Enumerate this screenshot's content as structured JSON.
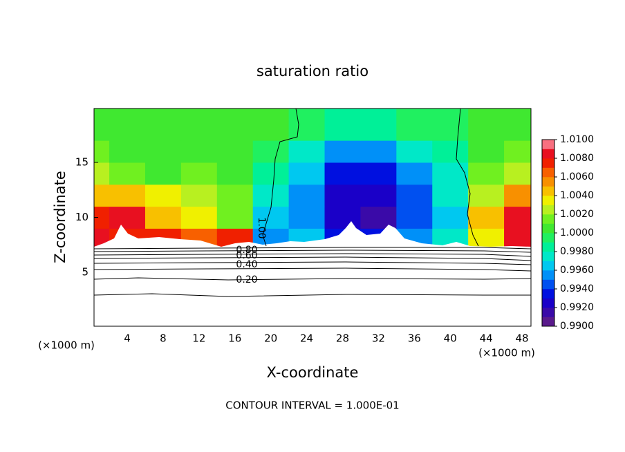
{
  "chart_data": {
    "type": "contour",
    "title": "saturation ratio",
    "x_label": "X-coordinate",
    "y_label": "Z-coordinate",
    "y_unit_label": "(×1000 m)",
    "x_unit_label": "(×1000 m)",
    "footer": "CONTOUR INTERVAL = 1.000E-01",
    "xlim": [
      0.3,
      49
    ],
    "ylim": [
      0.1,
      19.9
    ],
    "xticks": [
      4,
      8,
      12,
      16,
      20,
      24,
      28,
      32,
      36,
      40,
      44,
      48
    ],
    "yticks": [
      5,
      10,
      15
    ],
    "x": [
      0,
      4,
      8,
      12,
      16,
      20,
      24,
      28,
      32,
      36,
      40,
      44,
      48
    ],
    "y": [
      8,
      10,
      12,
      14,
      16,
      18
    ],
    "z": [
      [
        1.008,
        1.0075,
        1.007,
        1.006,
        1.007,
        0.9955,
        0.996,
        0.9935,
        0.993,
        0.995,
        0.997,
        1.003,
        1.008
      ],
      [
        1.007,
        1.008,
        1.004,
        1.003,
        1.0015,
        0.996,
        0.995,
        0.992,
        0.9915,
        0.994,
        0.996,
        1.004,
        1.008
      ],
      [
        1.004,
        1.004,
        1.003,
        1.002,
        1.001,
        0.9975,
        0.995,
        0.992,
        0.992,
        0.994,
        0.997,
        1.002,
        1.005
      ],
      [
        1.002,
        1.0015,
        1.0005,
        1.001,
        1.0005,
        0.998,
        0.996,
        0.993,
        0.993,
        0.995,
        0.9975,
        1.001,
        1.002
      ],
      [
        1.001,
        1.0005,
        1.0005,
        1.0005,
        1.0005,
        0.9995,
        0.9975,
        0.9955,
        0.9955,
        0.997,
        0.9985,
        1.0005,
        1.001
      ],
      [
        1.0005,
        1.0005,
        1.0005,
        1.0005,
        1.0005,
        1,
        0.999,
        0.9985,
        0.9985,
        0.999,
        0.9995,
        1.0005,
        1.0005
      ]
    ],
    "zlim": [
      0.99,
      1.01
    ],
    "level_step": 0.001,
    "colors": [
      "#5a1a8c",
      "#3a0aa8",
      "#1a00c8",
      "#0010e0",
      "#0050f0",
      "#0090f8",
      "#00c8f0",
      "#00e8c8",
      "#00f098",
      "#20f060",
      "#40e830",
      "#70f020",
      "#b8f020",
      "#f0f000",
      "#f8c000",
      "#f89000",
      "#f86000",
      "#f02000",
      "#e81020",
      "#f87080"
    ],
    "zticks": [
      {
        "value": 0.99,
        "label": "0.9900"
      },
      {
        "value": 0.992,
        "label": "0.9920"
      },
      {
        "value": 0.994,
        "label": "0.9940"
      },
      {
        "value": 0.996,
        "label": "0.9960"
      },
      {
        "value": 0.998,
        "label": "0.9980"
      },
      {
        "value": 1,
        "label": "1.0000"
      },
      {
        "value": 1.002,
        "label": "1.0020"
      },
      {
        "value": 1.004,
        "label": "1.0040"
      },
      {
        "value": 1.006,
        "label": "1.0060"
      },
      {
        "value": 1.008,
        "label": "1.0080"
      },
      {
        "value": 1.01,
        "label": "1.0100"
      }
    ],
    "contour_labels": [
      "1.00",
      "0.80",
      "0.60",
      "0.40",
      "0.20"
    ]
  }
}
